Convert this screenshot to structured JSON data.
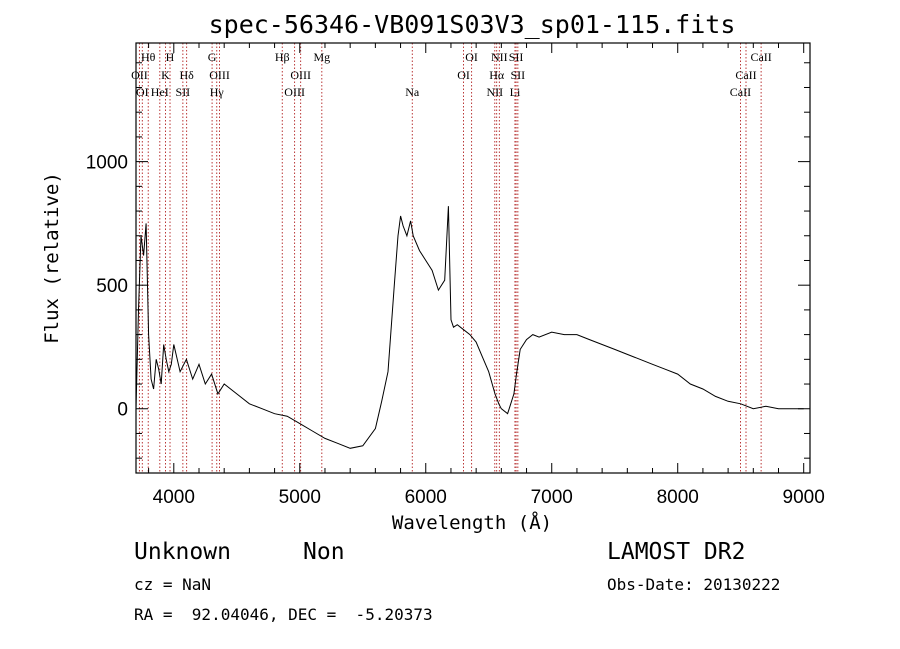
{
  "chart_data": {
    "type": "line",
    "title": "spec-56346-VB091S03V3_sp01-115.fits",
    "xlabel": "Wavelength (Å)",
    "ylabel": "Flux (relative)",
    "xlim": [
      3700,
      9050
    ],
    "ylim": [
      -260,
      1480
    ],
    "x_ticks": [
      4000,
      5000,
      6000,
      7000,
      8000,
      9000
    ],
    "y_ticks": [
      0,
      500,
      1000
    ],
    "grid": false,
    "series": [
      {
        "color": "#000000",
        "x": [
          3700,
          3720,
          3740,
          3760,
          3780,
          3800,
          3820,
          3840,
          3860,
          3880,
          3900,
          3920,
          3940,
          3960,
          3980,
          4000,
          4050,
          4100,
          4150,
          4200,
          4250,
          4300,
          4350,
          4400,
          4500,
          4600,
          4700,
          4800,
          4900,
          5000,
          5100,
          5200,
          5300,
          5400,
          5500,
          5600,
          5650,
          5700,
          5750,
          5780,
          5800,
          5820,
          5850,
          5880,
          5900,
          5950,
          6000,
          6050,
          6100,
          6150,
          6180,
          6200,
          6220,
          6250,
          6300,
          6350,
          6400,
          6450,
          6500,
          6550,
          6580,
          6600,
          6650,
          6700,
          6720,
          6750,
          6800,
          6850,
          6900,
          7000,
          7100,
          7200,
          7300,
          7400,
          7500,
          7600,
          7700,
          7800,
          7900,
          8000,
          8100,
          8200,
          8300,
          8400,
          8500,
          8600,
          8700,
          8800,
          8900,
          9000
        ],
        "y": [
          0,
          400,
          700,
          620,
          750,
          300,
          120,
          80,
          200,
          160,
          100,
          260,
          200,
          150,
          180,
          260,
          150,
          200,
          120,
          180,
          100,
          140,
          60,
          100,
          60,
          20,
          0,
          -20,
          -30,
          -60,
          -90,
          -120,
          -140,
          -160,
          -150,
          -80,
          30,
          150,
          500,
          700,
          780,
          740,
          700,
          760,
          700,
          640,
          600,
          560,
          480,
          520,
          820,
          360,
          330,
          340,
          320,
          300,
          270,
          210,
          150,
          60,
          20,
          0,
          -20,
          60,
          140,
          240,
          280,
          300,
          290,
          310,
          300,
          300,
          280,
          260,
          240,
          220,
          200,
          180,
          160,
          140,
          100,
          80,
          50,
          30,
          20,
          0,
          10,
          0,
          0,
          0
        ]
      }
    ],
    "line_labels": [
      {
        "text": "Hθ",
        "x": 3797,
        "row": 0
      },
      {
        "text": "OII",
        "x": 3727,
        "row": 1
      },
      {
        "text": "OI",
        "x": 3750,
        "row": 2
      },
      {
        "text": "H",
        "x": 3970,
        "row": 0
      },
      {
        "text": "K",
        "x": 3934,
        "row": 1
      },
      {
        "text": "HeI",
        "x": 3889,
        "row": 2
      },
      {
        "text": "Hδ",
        "x": 4102,
        "row": 1
      },
      {
        "text": "SII",
        "x": 4072,
        "row": 2
      },
      {
        "text": "G",
        "x": 4304,
        "row": 0
      },
      {
        "text": "OIII",
        "x": 4363,
        "row": 1
      },
      {
        "text": "Hγ",
        "x": 4341,
        "row": 2
      },
      {
        "text": "Hβ",
        "x": 4861,
        "row": 0
      },
      {
        "text": "OIII",
        "x": 5007,
        "row": 1
      },
      {
        "text": "OIII",
        "x": 4959,
        "row": 2
      },
      {
        "text": "Mg",
        "x": 5175,
        "row": 0
      },
      {
        "text": "Na",
        "x": 5893,
        "row": 2
      },
      {
        "text": "OI",
        "x": 6364,
        "row": 0
      },
      {
        "text": "OI",
        "x": 6300,
        "row": 1
      },
      {
        "text": "NII",
        "x": 6584,
        "row": 0
      },
      {
        "text": "SII",
        "x": 6717,
        "row": 0
      },
      {
        "text": "Hα",
        "x": 6563,
        "row": 1
      },
      {
        "text": "SII",
        "x": 6731,
        "row": 1
      },
      {
        "text": "NII",
        "x": 6548,
        "row": 2
      },
      {
        "text": "Li",
        "x": 6708,
        "row": 2
      },
      {
        "text": "CaII",
        "x": 8662,
        "row": 0
      },
      {
        "text": "CaII",
        "x": 8542,
        "row": 1
      },
      {
        "text": "CaII",
        "x": 8498,
        "row": 2
      }
    ],
    "line_positions": [
      3727,
      3750,
      3797,
      3889,
      3934,
      3970,
      4072,
      4102,
      4304,
      4341,
      4363,
      4861,
      4959,
      5007,
      5175,
      5893,
      6300,
      6364,
      6548,
      6563,
      6584,
      6708,
      6717,
      6731,
      8498,
      8542,
      8662
    ]
  },
  "info": {
    "class_label": "Unknown",
    "subclass_label": "Non",
    "cz_text": "cz = NaN",
    "coords_text": "RA =  92.04046, DEC =  -5.20373",
    "survey_text": "LAMOST DR2",
    "obs_date_text": "Obs-Date: 20130222"
  }
}
